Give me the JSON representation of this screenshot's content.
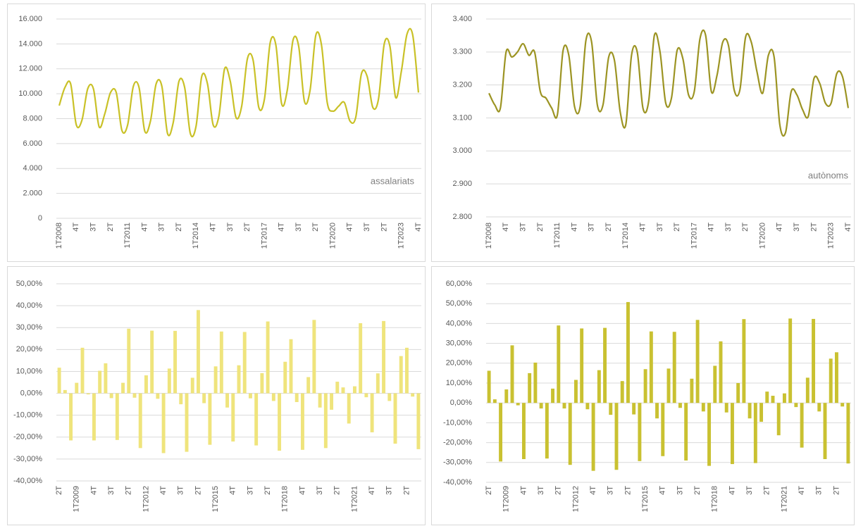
{
  "chart_data": [
    {
      "type": "line",
      "annotation": "assalariats",
      "color": "#c9c127",
      "categories": [
        "1T2008",
        null,
        null,
        "4T",
        null,
        null,
        "3T",
        null,
        null,
        "2T",
        null,
        null,
        "1T2011",
        null,
        null,
        "4T",
        null,
        null,
        "3T",
        null,
        null,
        "2T",
        null,
        null,
        "1T2014",
        null,
        null,
        "4T",
        null,
        null,
        "3T",
        null,
        null,
        "2T",
        null,
        null,
        "1T2017",
        null,
        null,
        "4T",
        null,
        null,
        "3T",
        null,
        null,
        "2T",
        null,
        null,
        "1T2020",
        null,
        null,
        "4T",
        null,
        null,
        "3T",
        null,
        null,
        "2T",
        null,
        null,
        "1T2023",
        null,
        null,
        "4T"
      ],
      "values": [
        9050,
        10500,
        10800,
        7500,
        7900,
        10400,
        10400,
        7350,
        8400,
        10100,
        10100,
        7050,
        7500,
        10600,
        10500,
        7000,
        7800,
        10800,
        10600,
        6800,
        7700,
        11000,
        10500,
        6800,
        7400,
        11400,
        10800,
        7500,
        8200,
        12000,
        11000,
        8100,
        9000,
        12800,
        12700,
        8900,
        9600,
        14100,
        13900,
        9200,
        10300,
        14300,
        13800,
        9400,
        10300,
        14700,
        13900,
        9300,
        8600,
        9000,
        9300,
        7800,
        8100,
        11600,
        11400,
        8900,
        9600,
        14000,
        13800,
        9700,
        11800,
        14800,
        14700,
        10100
      ],
      "ylim": [
        0,
        16000
      ],
      "yticks": [
        0,
        {
          "value": 2000,
          "label": "2.000"
        },
        {
          "value": 4000,
          "label": "4.000"
        },
        {
          "value": 6000,
          "label": "6.000"
        },
        {
          "value": 8000,
          "label": "8.000"
        },
        {
          "value": 10000,
          "label": "10.000"
        },
        {
          "value": 12000,
          "label": "12.000"
        },
        {
          "value": 14000,
          "label": "14.000"
        },
        {
          "value": 16000,
          "label": "16.000"
        }
      ],
      "grid": true
    },
    {
      "type": "line",
      "annotation": "autònoms",
      "color": "#9c9423",
      "categories": [
        "1T2008",
        null,
        null,
        "4T",
        null,
        null,
        "3T",
        null,
        null,
        "2T",
        null,
        null,
        "1T2011",
        null,
        null,
        "4T",
        null,
        null,
        "3T",
        null,
        null,
        "2T",
        null,
        null,
        "1T2014",
        null,
        null,
        "4T",
        null,
        null,
        "3T",
        null,
        null,
        "2T",
        null,
        null,
        "1T2017",
        null,
        null,
        "4T",
        null,
        null,
        "3T",
        null,
        null,
        "2T",
        null,
        null,
        "1T2020",
        null,
        null,
        "4T",
        null,
        null,
        "3T",
        null,
        null,
        "2T",
        null,
        null,
        "1T2023",
        null,
        null,
        "4T"
      ],
      "values": [
        3175,
        3140,
        3130,
        3300,
        3285,
        3300,
        3325,
        3290,
        3300,
        3180,
        3160,
        3130,
        3110,
        3305,
        3290,
        3135,
        3135,
        3335,
        3330,
        3140,
        3140,
        3285,
        3275,
        3120,
        3080,
        3290,
        3300,
        3130,
        3150,
        3350,
        3300,
        3145,
        3160,
        3305,
        3280,
        3170,
        3180,
        3340,
        3350,
        3180,
        3230,
        3330,
        3320,
        3185,
        3185,
        3345,
        3330,
        3240,
        3175,
        3290,
        3285,
        3080,
        3055,
        3180,
        3170,
        3125,
        3105,
        3220,
        3205,
        3145,
        3145,
        3235,
        3225,
        3130
      ],
      "ylim": [
        2800,
        3400
      ],
      "yticks": [
        {
          "value": 2800,
          "label": "2.800"
        },
        {
          "value": 2900,
          "label": "2.900"
        },
        {
          "value": 3000,
          "label": "3.000"
        },
        {
          "value": 3100,
          "label": "3.100"
        },
        {
          "value": 3200,
          "label": "3.200"
        },
        {
          "value": 3300,
          "label": "3.300"
        },
        {
          "value": 3400,
          "label": "3.400"
        }
      ],
      "grid": true
    },
    {
      "type": "bar",
      "color": "#efe47c",
      "categories": [
        "2T",
        null,
        null,
        "1T2009",
        null,
        null,
        "4T",
        null,
        null,
        "3T",
        null,
        null,
        "2T",
        null,
        null,
        "1T2012",
        null,
        null,
        "4T",
        null,
        null,
        "3T",
        null,
        null,
        "2T",
        null,
        null,
        "1T2015",
        null,
        null,
        "4T",
        null,
        null,
        "3T",
        null,
        null,
        "2T",
        null,
        null,
        "1T2018",
        null,
        null,
        "4T",
        null,
        null,
        "3T",
        null,
        null,
        "2T",
        null,
        null,
        "1T2021",
        null,
        null,
        "4T",
        null,
        null,
        "3T",
        null,
        null,
        "2T",
        null,
        null
      ],
      "values": [
        11.7,
        1.5,
        -21.5,
        4.8,
        20.8,
        -0.5,
        -21.5,
        10.3,
        13.7,
        -2.2,
        -21.3,
        4.8,
        29.5,
        -2.0,
        -25.0,
        8.2,
        28.6,
        -2.5,
        -27.3,
        11.3,
        28.5,
        -5.0,
        -26.7,
        7.1,
        38.0,
        -4.5,
        -23.5,
        12.3,
        28.2,
        -6.5,
        -22.0,
        12.8,
        28.0,
        -2.3,
        -23.8,
        9.2,
        32.8,
        -3.5,
        -26.2,
        14.4,
        24.7,
        -4.0,
        -25.8,
        7.4,
        33.5,
        -6.5,
        -25.0,
        -7.5,
        5.3,
        2.7,
        -13.8,
        3.2,
        32.0,
        -1.8,
        -17.8,
        9.1,
        33.0,
        -3.5,
        -23.0,
        17.0,
        20.8,
        -1.5,
        -25.5
      ],
      "ylim": [
        -40,
        50
      ],
      "yticks": [
        {
          "value": -40,
          "label": "-40,00%"
        },
        {
          "value": -30,
          "label": "-30,00%"
        },
        {
          "value": -20,
          "label": "-20,00%"
        },
        {
          "value": -10,
          "label": "-10,00%"
        },
        {
          "value": 0,
          "label": "0,00%"
        },
        {
          "value": 10,
          "label": "10,00%"
        },
        {
          "value": 20,
          "label": "20,00%"
        },
        {
          "value": 30,
          "label": "30,00%"
        },
        {
          "value": 40,
          "label": "40,00%"
        },
        {
          "value": 50,
          "label": "50,00%"
        }
      ],
      "grid": true
    },
    {
      "type": "bar",
      "color": "#c9c131",
      "categories": [
        "2T",
        null,
        null,
        "1T2009",
        null,
        null,
        "4T",
        null,
        null,
        "3T",
        null,
        null,
        "2T",
        null,
        null,
        "1T2012",
        null,
        null,
        "4T",
        null,
        null,
        "3T",
        null,
        null,
        "2T",
        null,
        null,
        "1T2015",
        null,
        null,
        "4T",
        null,
        null,
        "3T",
        null,
        null,
        "2T",
        null,
        null,
        "1T2018",
        null,
        null,
        "4T",
        null,
        null,
        "3T",
        null,
        null,
        "2T",
        null,
        null,
        "1T2021",
        null,
        null,
        "4T",
        null,
        null,
        "3T",
        null,
        null,
        "2T",
        null,
        null
      ],
      "values": [
        16.2,
        1.8,
        -29.5,
        6.8,
        29.0,
        -1.2,
        -28.3,
        15.0,
        20.3,
        -2.8,
        -28.0,
        7.2,
        39.0,
        -2.8,
        -31.2,
        11.6,
        37.5,
        -3.2,
        -34.2,
        16.5,
        37.8,
        -6.0,
        -33.7,
        11.0,
        50.8,
        -5.8,
        -29.3,
        17.0,
        36.0,
        -7.8,
        -26.8,
        17.3,
        35.8,
        -2.5,
        -29.0,
        12.2,
        41.8,
        -4.3,
        -31.7,
        18.7,
        31.0,
        -4.8,
        -30.8,
        10.0,
        42.2,
        -7.8,
        -30.3,
        -9.5,
        5.7,
        3.6,
        -16.3,
        4.8,
        42.5,
        -2.1,
        -22.5,
        12.7,
        42.3,
        -4.3,
        -28.3,
        22.3,
        25.5,
        -1.8,
        -30.5
      ],
      "ylim": [
        -40,
        60
      ],
      "yticks": [
        {
          "value": -40,
          "label": "-40,00%"
        },
        {
          "value": -30,
          "label": "-30,00%"
        },
        {
          "value": -20,
          "label": "-20,00%"
        },
        {
          "value": -10,
          "label": "-10,00%"
        },
        {
          "value": 0,
          "label": "0,00%"
        },
        {
          "value": 10,
          "label": "10,00%"
        },
        {
          "value": 20,
          "label": "20,00%"
        },
        {
          "value": 30,
          "label": "30,00%"
        },
        {
          "value": 40,
          "label": "40,00%"
        },
        {
          "value": 50,
          "label": "50,00%"
        },
        {
          "value": 60,
          "label": "60,00%"
        }
      ],
      "grid": true
    }
  ]
}
